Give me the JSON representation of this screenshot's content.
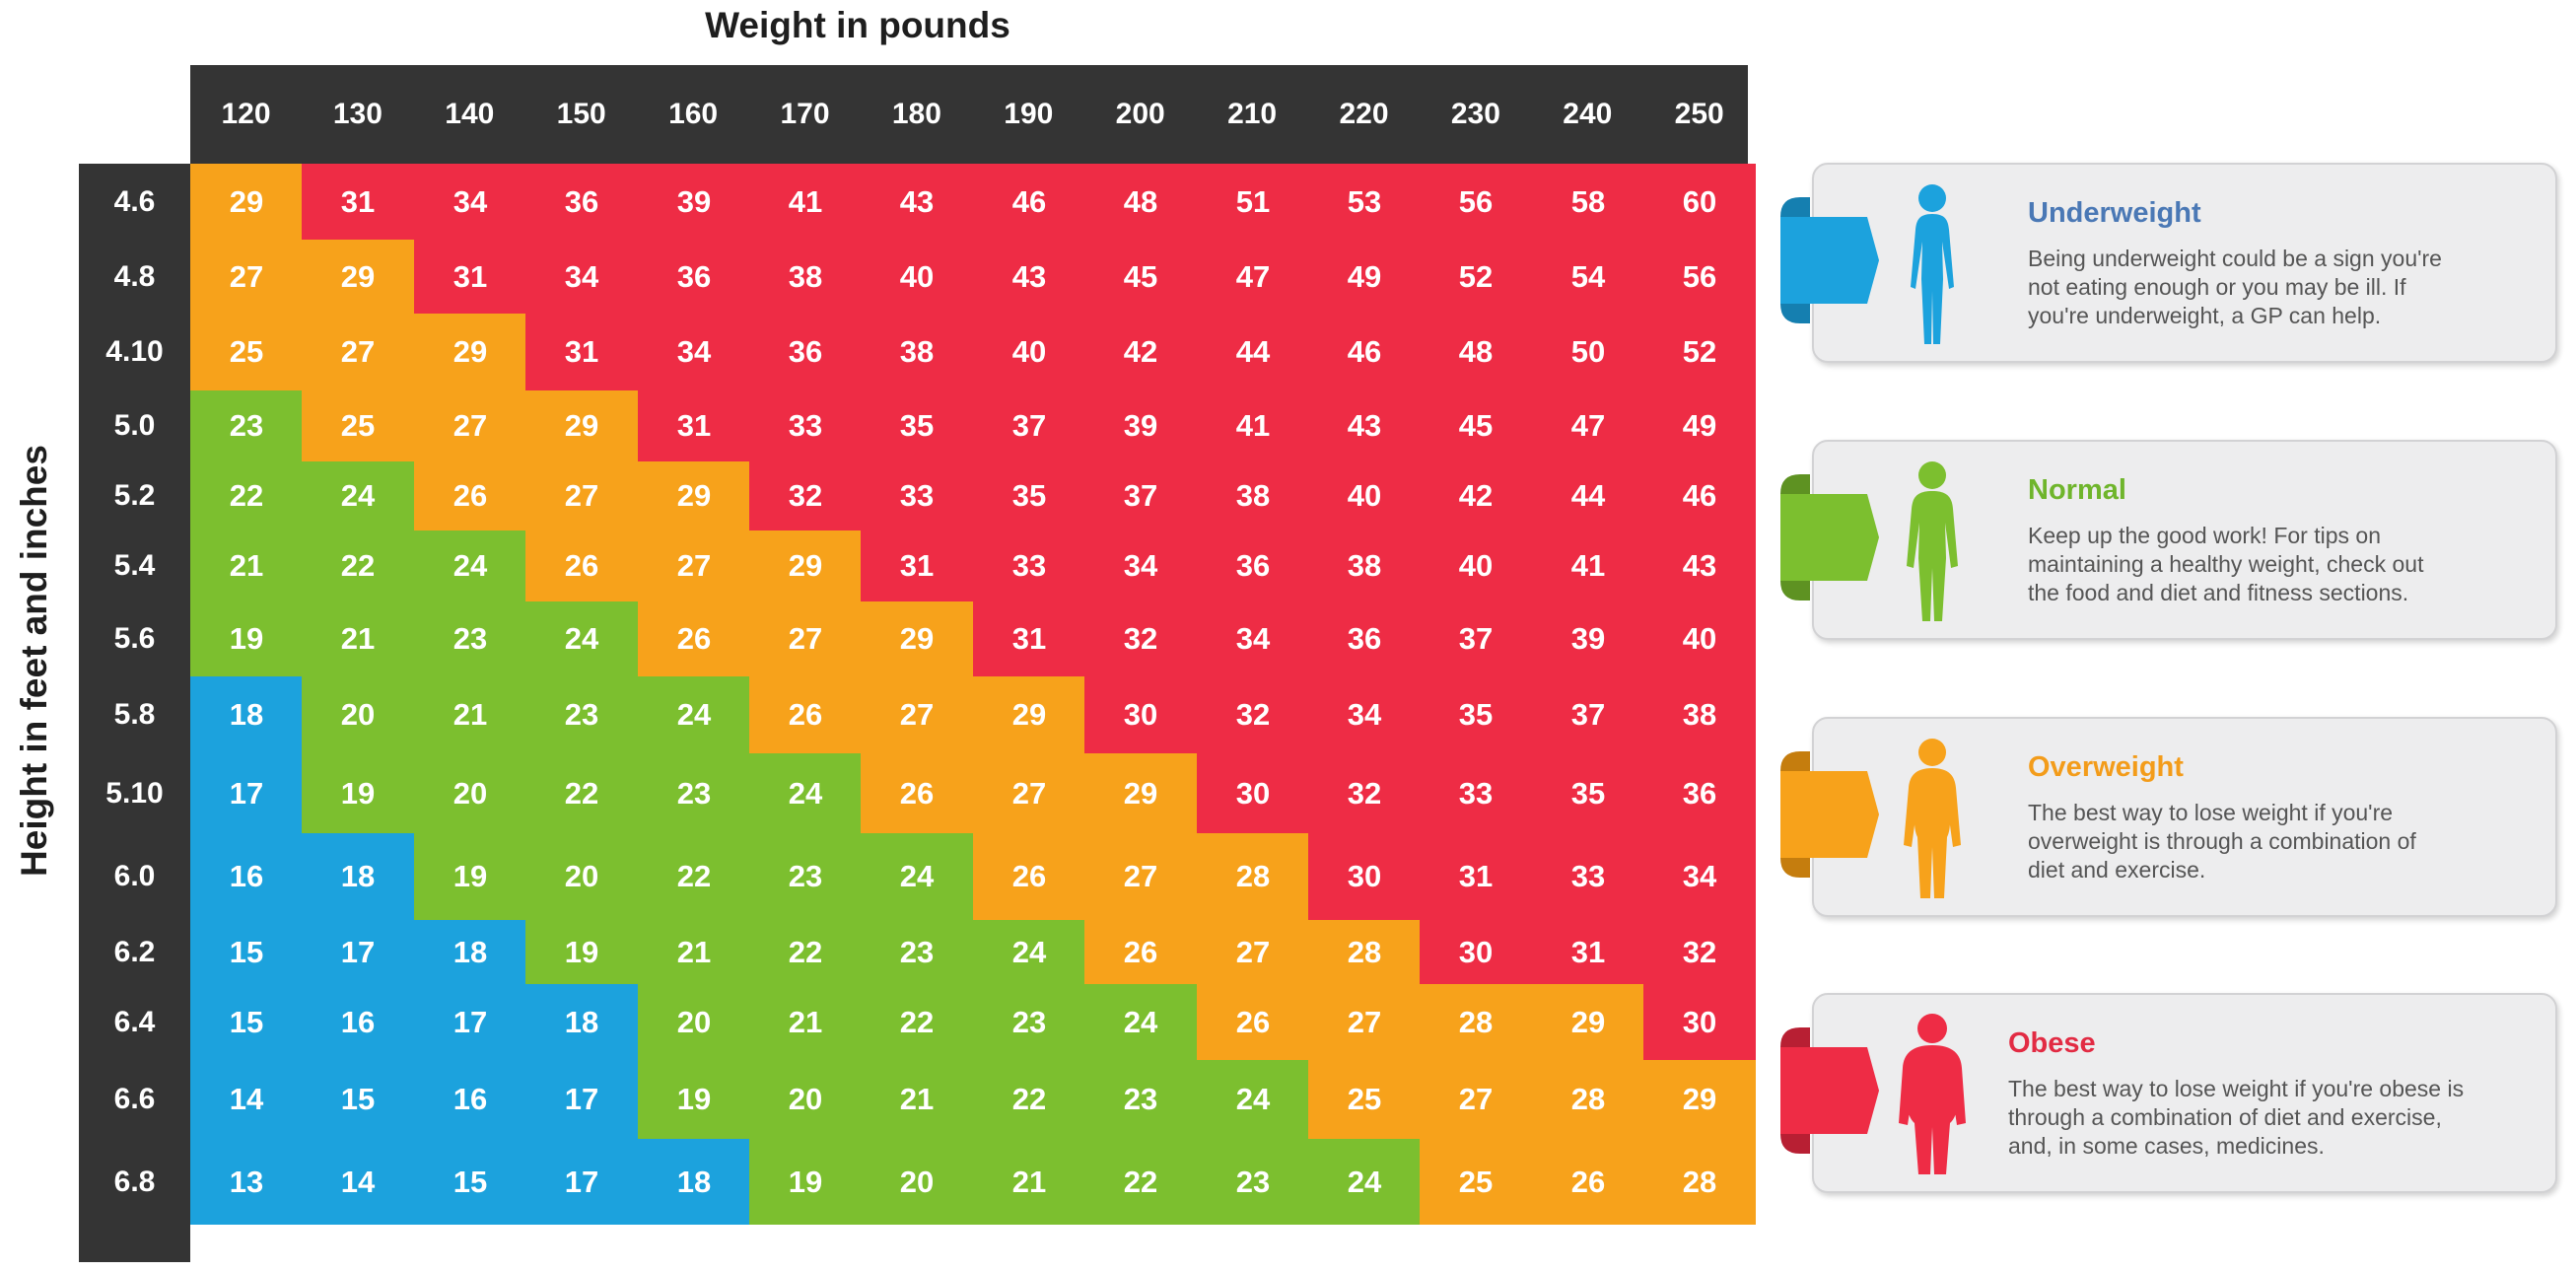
{
  "chart_data": {
    "type": "heatmap",
    "title": "",
    "xlabel": "Weight in pounds",
    "ylabel": "Height in feet and inches",
    "weights": [
      "120",
      "130",
      "140",
      "150",
      "160",
      "170",
      "180",
      "190",
      "200",
      "210",
      "220",
      "230",
      "240",
      "250"
    ],
    "heights": [
      "4.6",
      "4.8",
      "4.10",
      "5.0",
      "5.2",
      "5.4",
      "5.6",
      "5.8",
      "5.10",
      "6.0",
      "6.2",
      "6.4",
      "6.6",
      "6.8"
    ],
    "values": [
      [
        29,
        31,
        34,
        36,
        39,
        41,
        43,
        46,
        48,
        51,
        53,
        56,
        58,
        60
      ],
      [
        27,
        29,
        31,
        34,
        36,
        38,
        40,
        43,
        45,
        47,
        49,
        52,
        54,
        56
      ],
      [
        25,
        27,
        29,
        31,
        34,
        36,
        38,
        40,
        42,
        44,
        46,
        48,
        50,
        52
      ],
      [
        23,
        25,
        27,
        29,
        31,
        33,
        35,
        37,
        39,
        41,
        43,
        45,
        47,
        49
      ],
      [
        22,
        24,
        26,
        27,
        29,
        32,
        33,
        35,
        37,
        38,
        40,
        42,
        44,
        46
      ],
      [
        21,
        22,
        24,
        26,
        27,
        29,
        31,
        33,
        34,
        36,
        38,
        40,
        41,
        43
      ],
      [
        19,
        21,
        23,
        24,
        26,
        27,
        29,
        31,
        32,
        34,
        36,
        37,
        39,
        40
      ],
      [
        18,
        20,
        21,
        23,
        24,
        26,
        27,
        29,
        30,
        32,
        34,
        35,
        37,
        38
      ],
      [
        17,
        19,
        20,
        22,
        23,
        24,
        26,
        27,
        29,
        30,
        32,
        33,
        35,
        36
      ],
      [
        16,
        18,
        19,
        20,
        22,
        23,
        24,
        26,
        27,
        28,
        30,
        31,
        33,
        34
      ],
      [
        15,
        17,
        18,
        19,
        21,
        22,
        23,
        24,
        26,
        27,
        28,
        30,
        31,
        32
      ],
      [
        15,
        16,
        17,
        18,
        20,
        21,
        22,
        23,
        24,
        26,
        27,
        28,
        29,
        30
      ],
      [
        14,
        15,
        16,
        17,
        19,
        20,
        21,
        22,
        23,
        24,
        25,
        27,
        28,
        29
      ],
      [
        13,
        14,
        15,
        17,
        18,
        19,
        20,
        21,
        22,
        23,
        24,
        25,
        26,
        28
      ]
    ],
    "categories_by_cell": [
      [
        1,
        3,
        3,
        3,
        3,
        3,
        3,
        3,
        3,
        3,
        3,
        3,
        3,
        3
      ],
      [
        1,
        1,
        3,
        3,
        3,
        3,
        3,
        3,
        3,
        3,
        3,
        3,
        3,
        3
      ],
      [
        1,
        1,
        1,
        3,
        3,
        3,
        3,
        3,
        3,
        3,
        3,
        3,
        3,
        3
      ],
      [
        0,
        1,
        1,
        1,
        3,
        3,
        3,
        3,
        3,
        3,
        3,
        3,
        3,
        3
      ],
      [
        0,
        0,
        1,
        1,
        1,
        3,
        3,
        3,
        3,
        3,
        3,
        3,
        3,
        3
      ],
      [
        0,
        0,
        0,
        1,
        1,
        1,
        3,
        3,
        3,
        3,
        3,
        3,
        3,
        3
      ],
      [
        0,
        0,
        0,
        0,
        1,
        1,
        1,
        3,
        3,
        3,
        3,
        3,
        3,
        3
      ],
      [
        2,
        0,
        0,
        0,
        0,
        1,
        1,
        1,
        3,
        3,
        3,
        3,
        3,
        3
      ],
      [
        2,
        0,
        0,
        0,
        0,
        0,
        1,
        1,
        1,
        3,
        3,
        3,
        3,
        3
      ],
      [
        2,
        2,
        0,
        0,
        0,
        0,
        0,
        1,
        1,
        1,
        3,
        3,
        3,
        3
      ],
      [
        2,
        2,
        2,
        0,
        0,
        0,
        0,
        0,
        1,
        1,
        1,
        3,
        3,
        3
      ],
      [
        2,
        2,
        2,
        2,
        0,
        0,
        0,
        0,
        0,
        1,
        1,
        1,
        1,
        3
      ],
      [
        2,
        2,
        2,
        2,
        0,
        0,
        0,
        0,
        0,
        0,
        1,
        1,
        1,
        1
      ],
      [
        2,
        2,
        2,
        2,
        2,
        0,
        0,
        0,
        0,
        0,
        0,
        1,
        1,
        1
      ]
    ],
    "category_key": [
      "green",
      "orange",
      "blue",
      "red"
    ],
    "colors": {
      "green": "#7cbf2f",
      "orange": "#f7a21b",
      "blue": "#1ca2dd",
      "red": "#ee2c45",
      "header": "#343434"
    }
  },
  "legend": [
    {
      "title": "Underweight",
      "title_color": "#4a78b5",
      "color": "#1ca2dd",
      "dark": "#157fb0",
      "icon": "slim-person-icon",
      "lines": [
        "Being underweight could be a sign you're",
        "not eating enough or you may be ill. If",
        "you're underweight, a GP can help."
      ]
    },
    {
      "title": "Normal",
      "title_color": "#6fb52c",
      "color": "#7cbf2f",
      "dark": "#5e9222",
      "icon": "normal-person-icon",
      "lines": [
        "Keep up the good work! For tips on",
        "maintaining a healthy weight, check out",
        "the food and diet and fitness sections."
      ]
    },
    {
      "title": "Overweight",
      "title_color": "#f39c1a",
      "color": "#f7a21b",
      "dark": "#c57d0e",
      "icon": "overweight-person-icon",
      "lines": [
        "The best way to lose weight if you're",
        "overweight is through a combination of",
        "diet and exercise."
      ]
    },
    {
      "title": "Obese",
      "title_color": "#e22b43",
      "color": "#ee2c45",
      "dark": "#b81f33",
      "icon": "obese-person-icon",
      "lines": [
        "The best way to lose weight if you're obese is",
        "through a combination of diet and exercise,",
        "and, in some cases, medicines."
      ]
    }
  ]
}
